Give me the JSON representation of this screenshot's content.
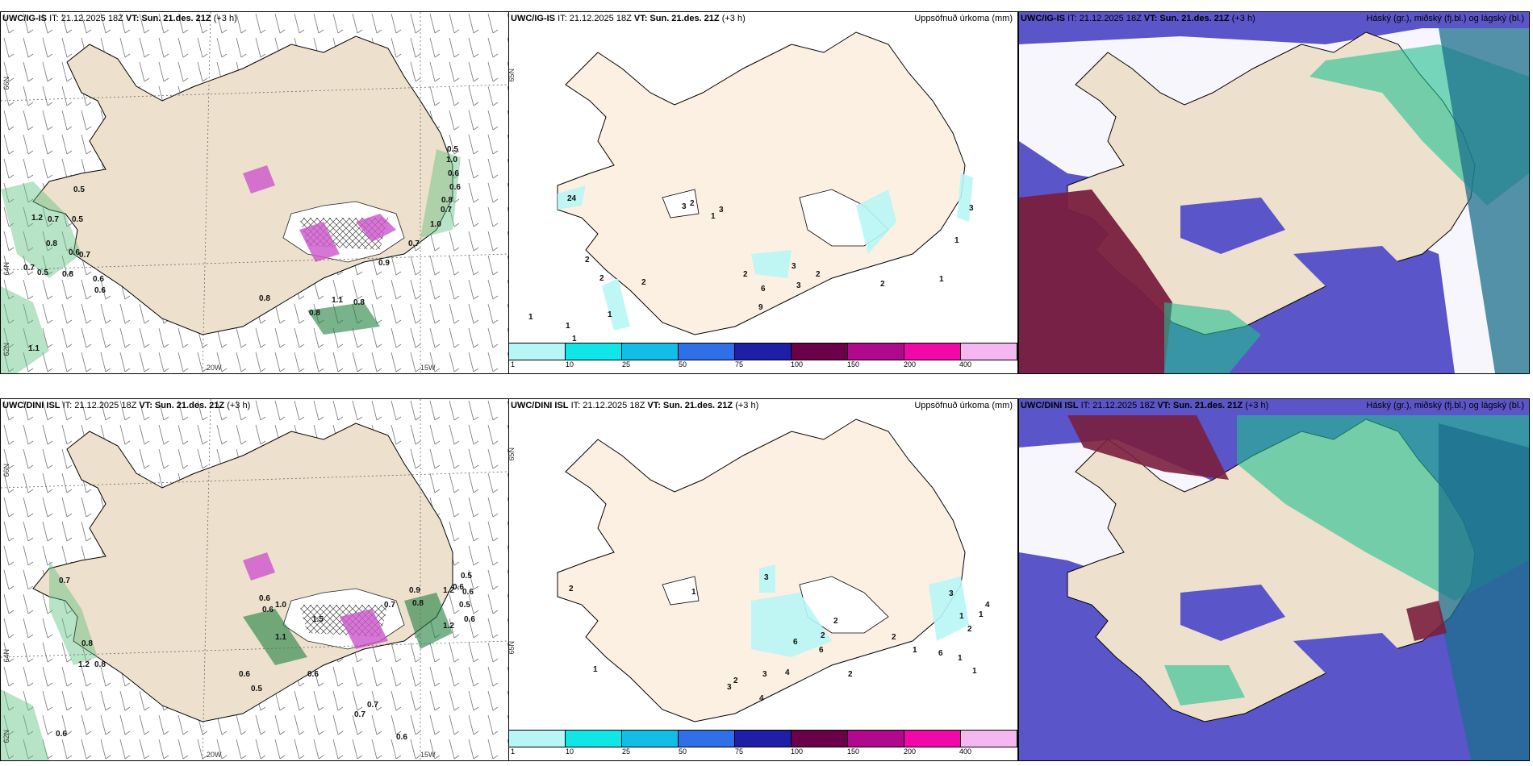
{
  "colors": {
    "land": "#ede0cd",
    "precip_scale": [
      "#b8f5f5",
      "#10e6e8",
      "#12bde8",
      "#2f6fe8",
      "#1e1ea8",
      "#6a0048",
      "#b0098d",
      "#f009a8",
      "#f5b7ef"
    ],
    "cloud_high": "#7a1f3f",
    "cloud_mid": "#1fbf8f",
    "cloud_low": "#5a55c8"
  },
  "precip_legend": {
    "ticks": [
      "1",
      "10",
      "25",
      "50",
      "75",
      "100",
      "150",
      "200",
      "400"
    ]
  },
  "panels": [
    {
      "id": "igis-wind",
      "model": "UWC/IG-IS",
      "it": "IT: 21.12.2025 18Z",
      "vt_label": "VT:",
      "vt": "Sun. 21.des. 21Z",
      "lead": "(+3 h)",
      "right": "",
      "lat_labels": [
        "66N",
        "64N",
        "62N"
      ],
      "lon_labels": [
        "20W",
        "15W"
      ],
      "values": [
        "0.5",
        "1.0",
        "0.6",
        "0.6",
        "0.7",
        "1.0",
        "0.8",
        "0.7",
        "0.5",
        "0.7",
        "0.5",
        "1.2",
        "0.8",
        "0.6",
        "0.7",
        "0.6",
        "0.7",
        "0.5",
        "0.8",
        "0.6",
        "0.8",
        "0.8",
        "1.1",
        "0.8",
        "0.9",
        "1.1"
      ]
    },
    {
      "id": "igis-precip",
      "model": "UWC/IG-IS",
      "it": "IT: 21.12.2025 18Z",
      "vt_label": "VT:",
      "vt": "Sun. 21.des. 21Z",
      "lead": "(+3 h)",
      "right": "Uppsöfnuð úrkoma (mm)",
      "lat_labels": [
        "65N"
      ],
      "values": [
        "24",
        "2",
        "1",
        "3",
        "2",
        "3",
        "1",
        "2",
        "2",
        "2",
        "1",
        "1",
        "1",
        "3",
        "2",
        "6",
        "9",
        "2",
        "3",
        "1",
        "1",
        "3"
      ]
    },
    {
      "id": "igis-cloud",
      "model": "UWC/IG-IS",
      "it": "IT: 21.12.2025 18Z",
      "vt_label": "VT:",
      "vt": "Sun. 21.des. 21Z",
      "lead": "(+3 h)",
      "right": "Háský (gr.), miðský (fj.bl.) og lágský (bl.)"
    },
    {
      "id": "dini-wind",
      "model": "UWC/DINI ISL",
      "it": "IT: 21.12.2025 18Z",
      "vt_label": "VT:",
      "vt": "Sun. 21.des. 21Z",
      "lead": "(+3 h)",
      "right": "",
      "lat_labels": [
        "66N",
        "64N",
        "62N"
      ],
      "lon_labels": [
        "20W",
        "15W"
      ],
      "values": [
        "0.7",
        "0.8",
        "1.2",
        "0.8",
        "0.6",
        "0.6",
        "1.0",
        "0.6",
        "1.5",
        "0.7",
        "0.6",
        "0.7",
        "1.2",
        "0.5",
        "0.6",
        "0.8",
        "0.6",
        "0.5",
        "0.7",
        "0.6",
        "0.6",
        "0.5",
        "0.6",
        "1.2",
        "0.9",
        "1.1"
      ]
    },
    {
      "id": "dini-precip",
      "model": "UWC/DINI ISL",
      "it": "IT: 21.12.2025 18Z",
      "vt_label": "VT:",
      "vt": "Sun. 21.des. 21Z",
      "lead": "(+3 h)",
      "right": "Uppsöfnuð úrkoma (mm)",
      "lat_labels": [
        "65N",
        "65N"
      ],
      "values": [
        "2",
        "1",
        "3",
        "1",
        "2",
        "2",
        "4",
        "6",
        "6",
        "2",
        "3",
        "2",
        "3",
        "4",
        "2",
        "1",
        "6",
        "1",
        "1",
        "1",
        "2",
        "3",
        "4",
        "1"
      ]
    },
    {
      "id": "dini-cloud",
      "model": "UWC/DINI ISL",
      "it": "IT: 21.12.2025 18Z",
      "vt_label": "VT:",
      "vt": "Sun. 21.des. 21Z",
      "lead": "(+3 h)",
      "right": "Háský (gr.), miðský (fj.bl.) og lágský (bl.)"
    }
  ]
}
